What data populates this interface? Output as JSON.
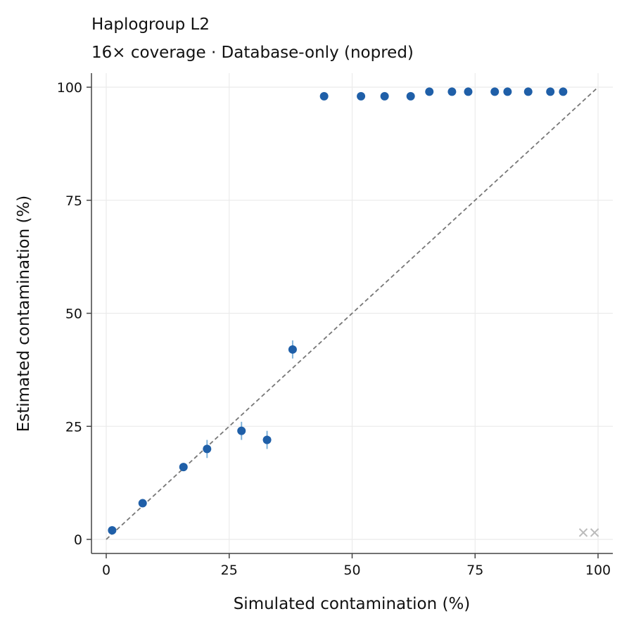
{
  "chart_data": {
    "type": "scatter",
    "title": "Haplogroup L2",
    "subtitle": "16× coverage  ·  Database-only (nopred)",
    "xlabel": "Simulated contamination (%)",
    "ylabel": "Estimated contamination (%)",
    "xlim": [
      -3,
      103
    ],
    "ylim": [
      -3,
      103
    ],
    "xticks": [
      0,
      25,
      50,
      75,
      100
    ],
    "yticks": [
      0,
      25,
      50,
      75,
      100
    ],
    "xtick_labels": [
      "0",
      "25",
      "50",
      "75",
      "100"
    ],
    "ytick_labels": [
      "0",
      "25",
      "50",
      "75",
      "100"
    ],
    "grid": true,
    "reference_line": {
      "x": [
        0,
        100
      ],
      "y": [
        0,
        100
      ],
      "style": "dashed",
      "color": "#777777"
    },
    "colors": {
      "points": "#1f5fa8",
      "errorbars": "#7fb2d9",
      "failed": "#bbbbbb"
    },
    "series": [
      {
        "points": [
          {
            "x": 1.2,
            "y": 2,
            "err": 0
          },
          {
            "x": 7.4,
            "y": 8,
            "err": 0
          },
          {
            "x": 15.7,
            "y": 16,
            "err": 0
          },
          {
            "x": 20.5,
            "y": 20,
            "err": 2
          },
          {
            "x": 27.5,
            "y": 24,
            "err": 2
          },
          {
            "x": 32.7,
            "y": 22,
            "err": 2
          },
          {
            "x": 37.9,
            "y": 42,
            "err": 2
          },
          {
            "x": 44.3,
            "y": 98,
            "err": 0
          },
          {
            "x": 51.8,
            "y": 98,
            "err": 0
          },
          {
            "x": 56.6,
            "y": 98,
            "err": 0
          },
          {
            "x": 61.9,
            "y": 98,
            "err": 0
          },
          {
            "x": 65.7,
            "y": 99,
            "err": 0
          },
          {
            "x": 70.3,
            "y": 99,
            "err": 0
          },
          {
            "x": 73.6,
            "y": 99,
            "err": 0
          },
          {
            "x": 79.0,
            "y": 99,
            "err": 0
          },
          {
            "x": 81.6,
            "y": 99,
            "err": 0
          },
          {
            "x": 85.8,
            "y": 99,
            "err": 0
          },
          {
            "x": 90.3,
            "y": 99,
            "err": 0
          },
          {
            "x": 92.9,
            "y": 99,
            "err": 0
          }
        ]
      },
      {
        "marker": "x",
        "points": [
          {
            "x": 97.0,
            "y": 1.5
          },
          {
            "x": 99.3,
            "y": 1.5
          }
        ]
      }
    ]
  }
}
